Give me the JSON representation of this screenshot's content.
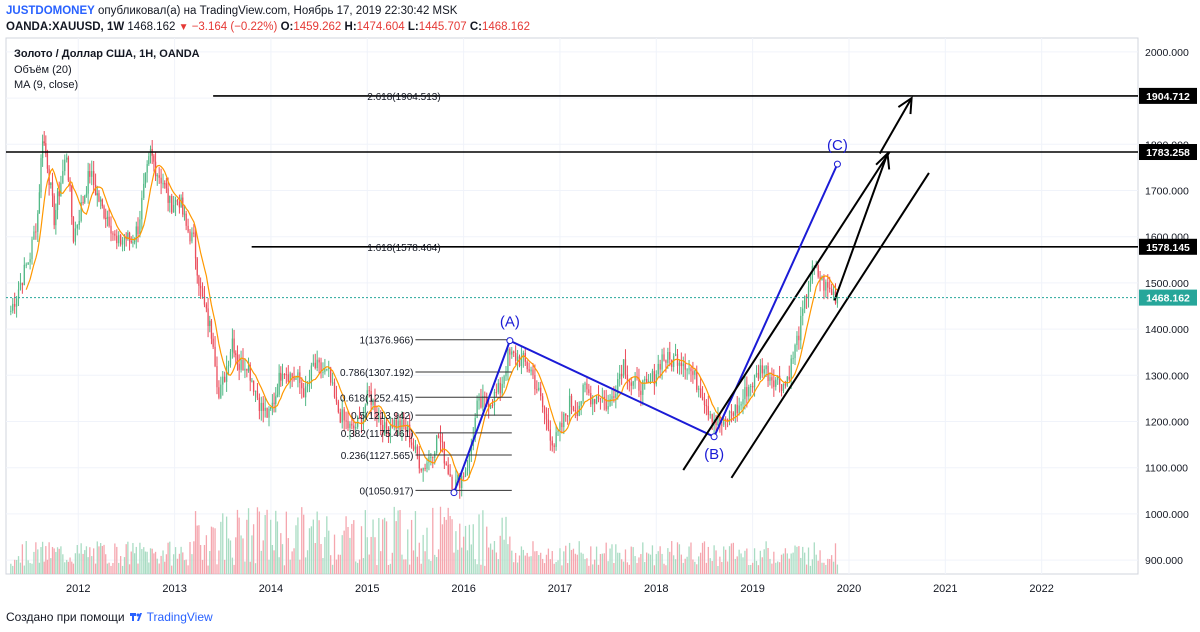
{
  "header": {
    "publisher": "JUSTDOMONEY",
    "published_text": "опубликовал(а) на TradingView.com, Ноябрь 17, 2019 22:30:42 MSK",
    "symbol": "OANDA:XAUUSD, 1W",
    "last": "1468.162",
    "change": "−3.164 (−0.22%)",
    "o_label": "O:",
    "o": "1459.262",
    "h_label": "H:",
    "h": "1474.604",
    "l_label": "L:",
    "l": "1445.707",
    "c_label": "C:",
    "c": "1468.162"
  },
  "legend": {
    "title": "Золото / Доллар США, 1Н, OANDA",
    "volume": "Объём (20)",
    "ma": "MA (9, close)"
  },
  "footer": {
    "created_with": "Создано при помощи",
    "brand": "TradingView"
  },
  "colors": {
    "up": "#53b987",
    "down": "#eb4d5c",
    "ma": "#ff9800",
    "vol_up": "#a9dcc3",
    "vol_down": "#f5a6ae",
    "blue": "#1b1bd6",
    "last_price": "#26a69a"
  },
  "chart_data": {
    "type": "candlestick",
    "x_ticks": [
      "2012",
      "2013",
      "2014",
      "2015",
      "2016",
      "2017",
      "2018",
      "2019",
      "2020",
      "2021",
      "2022"
    ],
    "y_ticks": [
      "2000.000",
      "1900.000",
      "1800.000",
      "1700.000",
      "1600.000",
      "1500.000",
      "1400.000",
      "1300.000",
      "1200.000",
      "1100.000",
      "1000.000",
      "900.000"
    ],
    "ylim": [
      870,
      2030
    ],
    "xlim": [
      2011.25,
      2023.0
    ],
    "last_price": 1468.162,
    "price_labels": [
      1904.712,
      1783.258,
      1578.145,
      1468.162
    ],
    "price_label_text": [
      "1904.712",
      "1783.258",
      "1578.145",
      "1468.162"
    ],
    "horizontal_levels": [
      {
        "price": 1904.712,
        "x_start": 2013.4,
        "label": "2.618(1904.513)",
        "label_x": 2015.0
      },
      {
        "price": 1783.258,
        "x_start": 2011.25,
        "label": "",
        "label_x": 2015.0
      },
      {
        "price": 1578.145,
        "x_start": 2013.8,
        "label": "1.618(1578.464)",
        "label_x": 2015.0
      }
    ],
    "fib_levels": [
      {
        "label": "1(1376.966)",
        "price": 1376.966
      },
      {
        "label": "0.786(1307.192)",
        "price": 1307.192
      },
      {
        "label": "0.618(1252.415)",
        "price": 1252.415
      },
      {
        "label": "0.5(1213.942)",
        "price": 1213.942
      },
      {
        "label": "0.382(1175.461)",
        "price": 1175.461
      },
      {
        "label": "0.236(1127.565)",
        "price": 1127.565
      },
      {
        "label": "0(1050.917)",
        "price": 1050.917
      }
    ],
    "fib_x": [
      2015.5,
      2016.5
    ],
    "wave_points": [
      {
        "label": "",
        "x": 2015.9,
        "price": 1046
      },
      {
        "label": "(A)",
        "x": 2016.48,
        "price": 1375
      },
      {
        "label": "(B)",
        "x": 2018.6,
        "price": 1167
      },
      {
        "label": "(C)",
        "x": 2019.88,
        "price": 1757
      }
    ],
    "channel_lines": [
      {
        "x1": 2018.28,
        "p1": 1095,
        "x2": 2020.42,
        "p2": 1783
      },
      {
        "x1": 2018.78,
        "p1": 1078,
        "x2": 2020.83,
        "p2": 1738
      }
    ],
    "arrows": [
      {
        "x1": 2019.85,
        "p1": 1462,
        "x2": 2020.4,
        "p2": 1780,
        "x3": 2020.45,
        "p3": 1720
      },
      {
        "x1": 2020.32,
        "p1": 1780,
        "x2": 2020.65,
        "p2": 1900,
        "x3": 2020.5,
        "p3": 1835
      }
    ],
    "weekly_close": [
      [
        2011.3,
        1440
      ],
      [
        2011.4,
        1500
      ],
      [
        2011.5,
        1560
      ],
      [
        2011.58,
        1650
      ],
      [
        2011.63,
        1820
      ],
      [
        2011.68,
        1760
      ],
      [
        2011.75,
        1640
      ],
      [
        2011.82,
        1720
      ],
      [
        2011.88,
        1780
      ],
      [
        2011.95,
        1600
      ],
      [
        2012.05,
        1680
      ],
      [
        2012.12,
        1740
      ],
      [
        2012.18,
        1700
      ],
      [
        2012.25,
        1660
      ],
      [
        2012.32,
        1640
      ],
      [
        2012.4,
        1580
      ],
      [
        2012.48,
        1600
      ],
      [
        2012.55,
        1590
      ],
      [
        2012.62,
        1620
      ],
      [
        2012.68,
        1700
      ],
      [
        2012.75,
        1780
      ],
      [
        2012.82,
        1740
      ],
      [
        2012.88,
        1720
      ],
      [
        2012.95,
        1670
      ],
      [
        2013.05,
        1680
      ],
      [
        2013.12,
        1620
      ],
      [
        2013.2,
        1590
      ],
      [
        2013.27,
        1480
      ],
      [
        2013.33,
        1430
      ],
      [
        2013.4,
        1380
      ],
      [
        2013.46,
        1250
      ],
      [
        2013.52,
        1300
      ],
      [
        2013.6,
        1380
      ],
      [
        2013.67,
        1320
      ],
      [
        2013.75,
        1330
      ],
      [
        2013.82,
        1280
      ],
      [
        2013.9,
        1230
      ],
      [
        2013.98,
        1210
      ],
      [
        2014.05,
        1260
      ],
      [
        2014.12,
        1320
      ],
      [
        2014.2,
        1300
      ],
      [
        2014.28,
        1290
      ],
      [
        2014.36,
        1260
      ],
      [
        2014.44,
        1320
      ],
      [
        2014.52,
        1310
      ],
      [
        2014.6,
        1300
      ],
      [
        2014.68,
        1230
      ],
      [
        2014.76,
        1200
      ],
      [
        2014.84,
        1180
      ],
      [
        2014.92,
        1200
      ],
      [
        2015.02,
        1260
      ],
      [
        2015.1,
        1220
      ],
      [
        2015.18,
        1180
      ],
      [
        2015.26,
        1200
      ],
      [
        2015.34,
        1190
      ],
      [
        2015.42,
        1180
      ],
      [
        2015.5,
        1130
      ],
      [
        2015.58,
        1100
      ],
      [
        2015.66,
        1130
      ],
      [
        2015.74,
        1170
      ],
      [
        2015.82,
        1110
      ],
      [
        2015.9,
        1060
      ],
      [
        2015.98,
        1080
      ],
      [
        2016.06,
        1120
      ],
      [
        2016.14,
        1230
      ],
      [
        2016.22,
        1240
      ],
      [
        2016.3,
        1250
      ],
      [
        2016.38,
        1270
      ],
      [
        2016.46,
        1340
      ],
      [
        2016.54,
        1340
      ],
      [
        2016.62,
        1330
      ],
      [
        2016.7,
        1310
      ],
      [
        2016.78,
        1260
      ],
      [
        2016.86,
        1200
      ],
      [
        2016.94,
        1150
      ],
      [
        2017.02,
        1190
      ],
      [
        2017.1,
        1240
      ],
      [
        2017.18,
        1230
      ],
      [
        2017.26,
        1270
      ],
      [
        2017.34,
        1250
      ],
      [
        2017.42,
        1260
      ],
      [
        2017.5,
        1230
      ],
      [
        2017.58,
        1280
      ],
      [
        2017.66,
        1330
      ],
      [
        2017.74,
        1280
      ],
      [
        2017.82,
        1280
      ],
      [
        2017.9,
        1270
      ],
      [
        2017.98,
        1300
      ],
      [
        2018.06,
        1340
      ],
      [
        2018.14,
        1330
      ],
      [
        2018.22,
        1340
      ],
      [
        2018.3,
        1330
      ],
      [
        2018.38,
        1300
      ],
      [
        2018.46,
        1270
      ],
      [
        2018.54,
        1230
      ],
      [
        2018.62,
        1200
      ],
      [
        2018.7,
        1190
      ],
      [
        2018.78,
        1220
      ],
      [
        2018.86,
        1230
      ],
      [
        2018.94,
        1270
      ],
      [
        2019.02,
        1290
      ],
      [
        2019.1,
        1320
      ],
      [
        2019.18,
        1300
      ],
      [
        2019.26,
        1290
      ],
      [
        2019.34,
        1280
      ],
      [
        2019.42,
        1340
      ],
      [
        2019.5,
        1410
      ],
      [
        2019.58,
        1500
      ],
      [
        2019.64,
        1530
      ],
      [
        2019.7,
        1510
      ],
      [
        2019.76,
        1490
      ],
      [
        2019.82,
        1480
      ],
      [
        2019.88,
        1468
      ]
    ]
  }
}
